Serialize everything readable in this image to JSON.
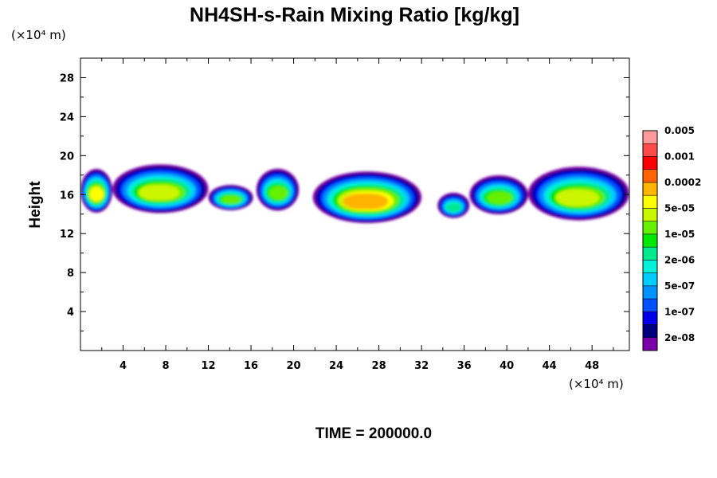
{
  "chart_data": {
    "type": "heatmap",
    "title": "NH4SH-s-Rain Mixing Ratio [kg/kg]",
    "ylabel": "Height",
    "x_unit": "(×10⁴ m)",
    "y_unit": "(×10⁴ m)",
    "x_range": [
      0,
      51.5
    ],
    "y_range": [
      0,
      30
    ],
    "x_ticks": [
      4,
      8,
      12,
      16,
      20,
      24,
      28,
      32,
      36,
      40,
      44,
      48
    ],
    "y_ticks": [
      4,
      8,
      12,
      16,
      20,
      24,
      28
    ],
    "time_label": "TIME = 200000.0",
    "colorbar": {
      "colors": [
        "#7a00a8",
        "#00007e",
        "#0000e6",
        "#0050ff",
        "#0090ff",
        "#00ccff",
        "#00f0d8",
        "#00e890",
        "#00e800",
        "#66f000",
        "#ccf500",
        "#ffff00",
        "#ffb400",
        "#ff6400",
        "#ff0000",
        "#ff4a4a",
        "#ff9a9a"
      ],
      "labels": [
        "2e-08",
        "1e-07",
        "5e-07",
        "2e-06",
        "1e-05",
        "5e-05",
        "0.0002",
        "0.001",
        "0.005"
      ]
    },
    "cloud_features": [
      {
        "x": [
          0,
          3
        ],
        "y_base": 14.5,
        "y_top": 19,
        "peak_level": 11
      },
      {
        "x": [
          3,
          12
        ],
        "y_base": 14.5,
        "y_top": 19.5,
        "peak_level": 10
      },
      {
        "x": [
          12,
          16.2
        ],
        "y_base": 14.6,
        "y_top": 17.2,
        "peak_level": 9
      },
      {
        "x": [
          16.5,
          20.5
        ],
        "y_base": 14.7,
        "y_top": 19,
        "peak_level": 9
      },
      {
        "x": [
          21.8,
          32
        ],
        "y_base": 13.5,
        "y_top": 18.8,
        "peak_level": 12
      },
      {
        "x": [
          33.5,
          36.5
        ],
        "y_base": 13.8,
        "y_top": 16.4,
        "peak_level": 7
      },
      {
        "x": [
          36.5,
          42
        ],
        "y_base": 14.3,
        "y_top": 18.3,
        "peak_level": 9
      },
      {
        "x": [
          42,
          51.5
        ],
        "y_base": 13.8,
        "y_top": 19.3,
        "peak_level": 10
      }
    ]
  }
}
